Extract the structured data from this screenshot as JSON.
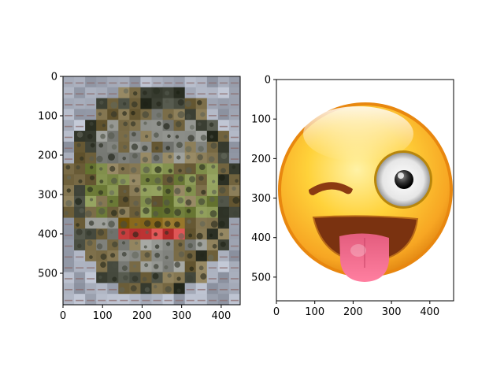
{
  "panels": [
    {
      "name": "mosaic-image",
      "content": "photo-mosaic",
      "xlim": [
        0,
        448
      ],
      "ylim": [
        0,
        580
      ],
      "x_ticks": [
        0,
        100,
        200,
        300,
        400
      ],
      "y_ticks": [
        0,
        100,
        200,
        300,
        400,
        500
      ]
    },
    {
      "name": "emoji-image",
      "content": "winking-tongue-out-emoji",
      "xlim": [
        0,
        462
      ],
      "ylim": [
        0,
        560
      ],
      "x_ticks": [
        0,
        100,
        200,
        300,
        400
      ],
      "y_ticks": [
        0,
        100,
        200,
        300,
        400,
        500
      ]
    }
  ],
  "colors": {
    "mosaic_sky": "#a7adbb",
    "mosaic_earth": "#7d6f4a",
    "mosaic_grass": "#7c8a47",
    "mosaic_dark": "#3f4337",
    "mosaic_red": "#c53c3c",
    "emoji_face_outer": "#f39c12",
    "emoji_face_inner": "#ffd23a",
    "emoji_mouth": "#7a3210",
    "emoji_tongue": "#f2668a",
    "emoji_eye_white": "#f7f7f7",
    "emoji_pupil": "#2b2b2b"
  }
}
